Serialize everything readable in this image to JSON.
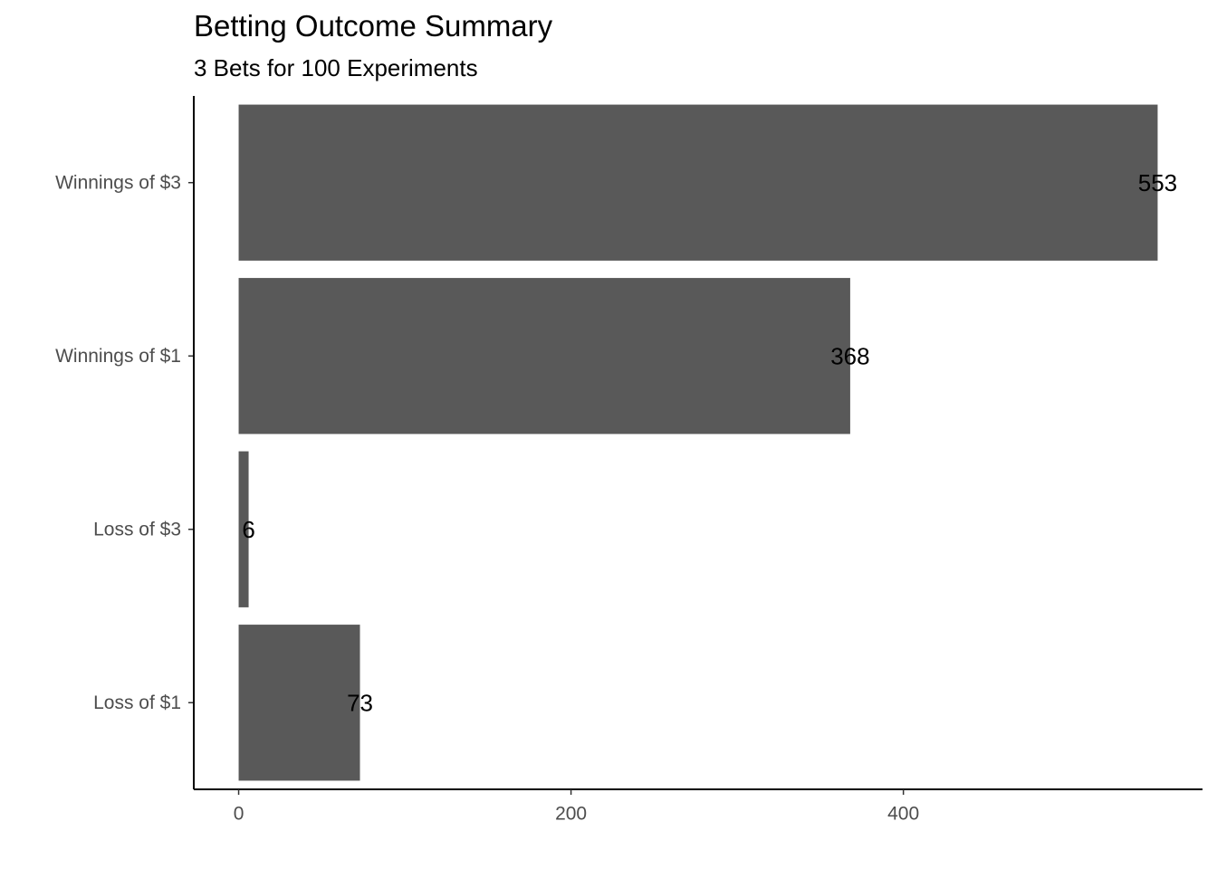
{
  "chart_data": {
    "type": "bar",
    "orientation": "horizontal",
    "title": "Betting Outcome Summary",
    "subtitle": "3 Bets for 100 Experiments",
    "xlabel": "",
    "ylabel": "",
    "categories": [
      "Loss of $1",
      "Loss of $3",
      "Winnings of $1",
      "Winnings of $3"
    ],
    "values": [
      73,
      6,
      368,
      553
    ],
    "data_labels": [
      "73",
      "6",
      "368",
      "553"
    ],
    "xlim": [
      -27,
      580
    ],
    "x_ticks": [
      0,
      200,
      400
    ],
    "x_tick_labels": [
      "0",
      "200",
      "400"
    ],
    "grid": false,
    "legend": "none",
    "bar_color": "#595959",
    "axis_color": "#000000",
    "tick_label_color": "#4d4d4d"
  }
}
